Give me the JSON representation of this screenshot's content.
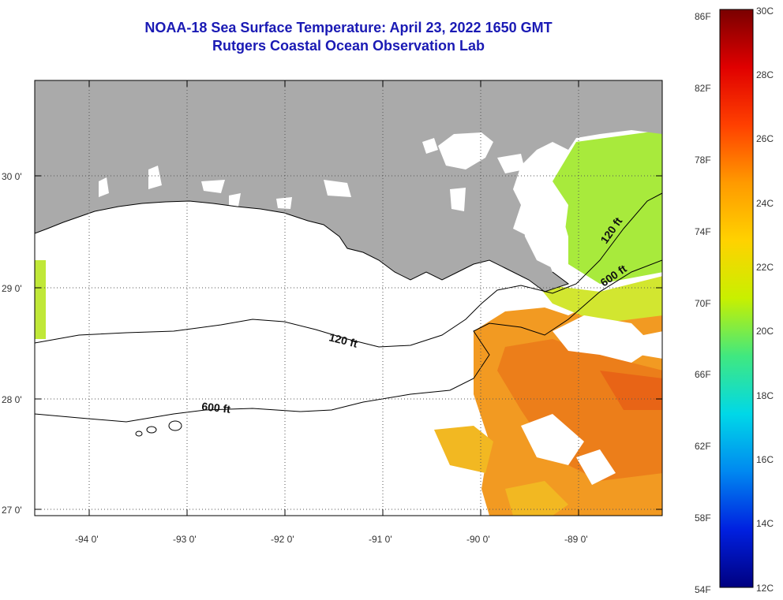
{
  "title": {
    "line1": "NOAA-18 Sea Surface Temperature:  April 23, 2022 1650 GMT",
    "line2": "Rutgers Coastal Ocean Observation Lab"
  },
  "axes": {
    "longitude_labels": [
      "-94 0'",
      "-93 0'",
      "-92 0'",
      "-91 0'",
      "-90 0'",
      "-89 0'"
    ],
    "latitude_labels": [
      "30 0'",
      "29 0'",
      "28 0'",
      "27 0'"
    ]
  },
  "contours": {
    "label_120": "120 ft",
    "label_600": "600 ft"
  },
  "colorbar": {
    "fahrenheit": [
      "86F",
      "82F",
      "78F",
      "74F",
      "70F",
      "66F",
      "62F",
      "58F",
      "54F"
    ],
    "celsius": [
      "30C",
      "28C",
      "26C",
      "24C",
      "22C",
      "20C",
      "18C",
      "16C",
      "14C",
      "12C"
    ]
  },
  "colors": {
    "land": "#aaaaaa",
    "title": "#1a1ab4",
    "warm": "#f08a1e",
    "mid": "#f5c21c",
    "cool": "#a8ea3c"
  }
}
